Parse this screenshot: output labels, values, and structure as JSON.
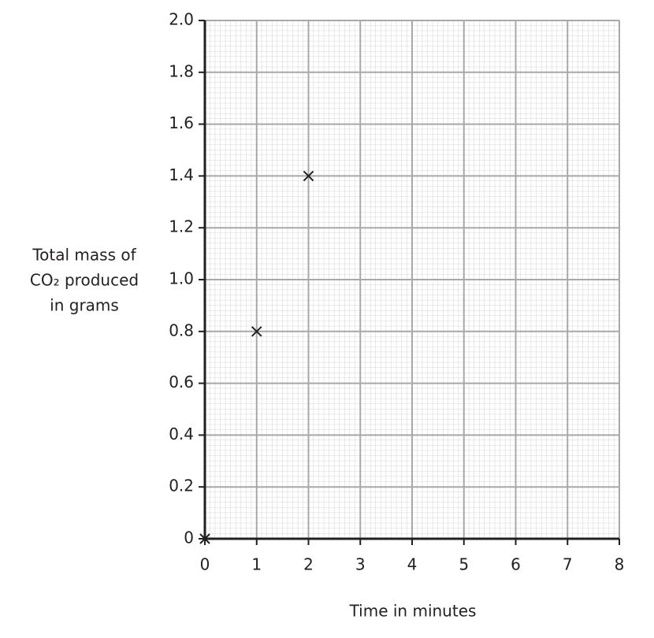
{
  "chart_data": {
    "type": "scatter",
    "xlabel": "Time in minutes",
    "ylabel": [
      "Total mass of",
      "CO₂ produced",
      "in grams"
    ],
    "series": [
      {
        "x": [
          0,
          1,
          2
        ],
        "values": [
          0,
          0.8,
          1.4
        ],
        "color": "#231f20"
      }
    ],
    "xlim": [
      0,
      8
    ],
    "xticks": [
      0,
      1,
      2,
      3,
      4,
      5,
      6,
      7,
      8
    ],
    "ylim": [
      0,
      2
    ],
    "yticks": [
      0,
      0.2,
      0.4,
      0.6,
      0.8,
      {
        "value": 1,
        "label": "1.0"
      },
      1.2,
      1.4,
      1.6,
      1.8,
      {
        "value": 2,
        "label": "2.0"
      }
    ],
    "grid": true
  }
}
